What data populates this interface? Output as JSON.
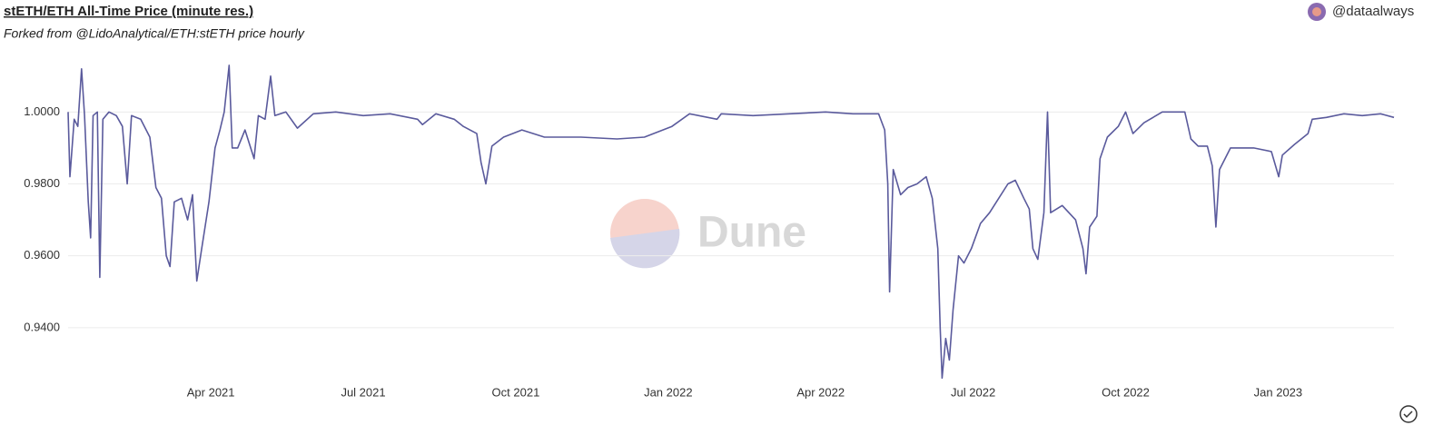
{
  "chart_data": {
    "type": "line",
    "title": "stETH/ETH All-Time Price (minute res.)",
    "subtitle": "Forked from @LidoAnalytical/ETH:stETH price hourly",
    "author": "@dataalways",
    "watermark": "Dune",
    "grid": true,
    "xlim": [
      2021.016,
      2023.19
    ],
    "xticks": [
      {
        "value": 2021.25,
        "label": "Apr 2021"
      },
      {
        "value": 2021.5,
        "label": "Jul 2021"
      },
      {
        "value": 2021.75,
        "label": "Oct 2021"
      },
      {
        "value": 2022.0,
        "label": "Jan 2022"
      },
      {
        "value": 2022.25,
        "label": "Apr 2022"
      },
      {
        "value": 2022.5,
        "label": "Jul 2022"
      },
      {
        "value": 2022.75,
        "label": "Oct 2022"
      },
      {
        "value": 2023.0,
        "label": "Jan 2023"
      }
    ],
    "ylim": [
      0.92,
      1.016
    ],
    "yticks": [
      {
        "value": 0.94,
        "label": "0.9400"
      },
      {
        "value": 0.96,
        "label": "0.9600"
      },
      {
        "value": 0.98,
        "label": "0.9800"
      },
      {
        "value": 1.0,
        "label": "1.0000"
      }
    ],
    "x": [
      2021.016,
      2021.019,
      2021.026,
      2021.032,
      2021.038,
      2021.043,
      2021.049,
      2021.053,
      2021.057,
      2021.064,
      2021.068,
      2021.073,
      2021.083,
      2021.095,
      2021.105,
      2021.113,
      2021.12,
      2021.135,
      2021.15,
      2021.16,
      2021.169,
      2021.177,
      2021.183,
      2021.19,
      2021.202,
      2021.212,
      2021.22,
      2021.227,
      2021.235,
      2021.247,
      2021.257,
      2021.265,
      2021.272,
      2021.28,
      2021.285,
      2021.294,
      2021.306,
      2021.321,
      2021.328,
      2021.339,
      2021.348,
      2021.355,
      2021.373,
      2021.392,
      2021.418,
      2021.455,
      2021.5,
      2021.544,
      2021.589,
      2021.597,
      2021.619,
      2021.649,
      2021.664,
      2021.686,
      2021.693,
      2021.701,
      2021.711,
      2021.73,
      2021.76,
      2021.797,
      2021.857,
      2021.916,
      2021.961,
      2022.006,
      2022.035,
      2022.08,
      2022.087,
      2022.139,
      2022.199,
      2022.258,
      2022.303,
      2022.345,
      2022.355,
      2022.36,
      2022.363,
      2022.369,
      2022.381,
      2022.393,
      2022.408,
      2022.423,
      2022.433,
      2022.442,
      2022.446,
      2022.449,
      2022.455,
      2022.461,
      2022.467,
      2022.476,
      2022.485,
      2022.497,
      2022.512,
      2022.527,
      2022.542,
      2022.557,
      2022.569,
      2022.583,
      2022.592,
      2022.598,
      2022.606,
      2022.616,
      2022.622,
      2022.627,
      2022.646,
      2022.668,
      2022.68,
      2022.685,
      2022.691,
      2022.703,
      2022.708,
      2022.72,
      2022.738,
      2022.75,
      2022.762,
      2022.78,
      2022.81,
      2022.847,
      2022.857,
      2022.869,
      2022.884,
      2022.892,
      2022.898,
      2022.904,
      2022.922,
      2022.96,
      2022.989,
      2023.001,
      2023.007,
      2023.027,
      2023.049,
      2023.056,
      2023.079,
      2023.108,
      2023.138,
      2023.168,
      2023.19
    ],
    "series": [
      {
        "name": "stETH/ETH",
        "color": "#5a5a9c",
        "values": [
          1.0,
          0.982,
          0.998,
          0.996,
          1.012,
          0.999,
          0.975,
          0.965,
          0.999,
          1.0,
          0.954,
          0.998,
          1.0,
          0.999,
          0.996,
          0.98,
          0.999,
          0.998,
          0.993,
          0.979,
          0.976,
          0.96,
          0.957,
          0.975,
          0.976,
          0.97,
          0.977,
          0.953,
          0.962,
          0.975,
          0.99,
          0.995,
          1.0,
          1.013,
          0.99,
          0.99,
          0.995,
          0.987,
          0.999,
          0.998,
          1.01,
          0.999,
          1.0,
          0.9955,
          0.9995,
          1.0,
          0.999,
          0.9995,
          0.998,
          0.9965,
          0.9995,
          0.998,
          0.996,
          0.994,
          0.986,
          0.98,
          0.9905,
          0.993,
          0.995,
          0.993,
          0.993,
          0.9925,
          0.993,
          0.996,
          0.9995,
          0.998,
          0.9995,
          0.999,
          0.9995,
          1.0,
          0.9995,
          0.9995,
          0.995,
          0.98,
          0.95,
          0.984,
          0.977,
          0.979,
          0.98,
          0.982,
          0.976,
          0.962,
          0.94,
          0.926,
          0.937,
          0.931,
          0.945,
          0.96,
          0.958,
          0.962,
          0.969,
          0.972,
          0.976,
          0.98,
          0.981,
          0.976,
          0.973,
          0.962,
          0.959,
          0.972,
          1.0,
          0.972,
          0.974,
          0.97,
          0.962,
          0.955,
          0.968,
          0.971,
          0.987,
          0.993,
          0.996,
          1.0,
          0.994,
          0.997,
          1.0,
          1.0,
          0.9925,
          0.9905,
          0.9905,
          0.985,
          0.968,
          0.984,
          0.99,
          0.99,
          0.989,
          0.982,
          0.988,
          0.991,
          0.994,
          0.998,
          0.9985,
          0.9995,
          0.999,
          0.9995,
          0.9985
        ]
      }
    ]
  }
}
